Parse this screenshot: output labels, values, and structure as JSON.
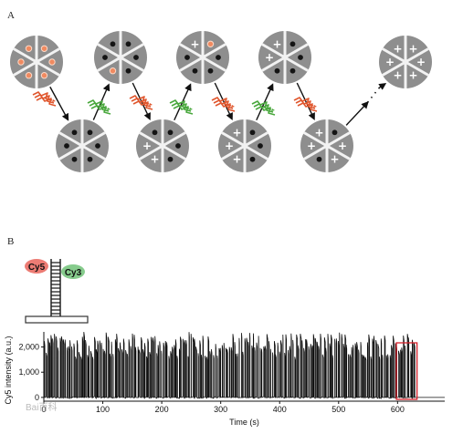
{
  "panels": {
    "a_label": "A",
    "b_label": "B"
  },
  "schematic": {
    "dye_left": "Cy5",
    "dye_right": "Cy3",
    "plus_glyph": "+",
    "colors": {
      "wheel": "#8e8e8e",
      "spoke": "#f2f2f2",
      "dot": "#141414",
      "fluor": "#f08a60",
      "cy5": "#ec7c74",
      "cy3": "#86cb8c",
      "red_flash": "#e0572e",
      "green_flash": "#4aa83e"
    },
    "top_row": [
      [
        "fluor",
        "fluor",
        "fluor",
        "fluor",
        "fluor",
        "fluor"
      ],
      [
        "dot",
        "dot",
        "fluor",
        "dot",
        "dot",
        "dot"
      ],
      [
        "dot",
        "dot",
        "dot",
        "dot",
        "plus",
        "fluor"
      ],
      [
        "dot",
        "dot",
        "dot",
        "plus",
        "plus",
        "dot"
      ],
      [
        "plus",
        "plus",
        "plus",
        "plus",
        "plus",
        "plus"
      ]
    ],
    "bottom_row": [
      [
        "dot",
        "dot",
        "dot",
        "dot",
        "dot",
        "dot"
      ],
      [
        "dot",
        "dot",
        "plus",
        "plus",
        "dot",
        "dot"
      ],
      [
        "dot",
        "dot",
        "plus",
        "plus",
        "plus",
        "dot"
      ],
      [
        "plus",
        "plus",
        "dot",
        "plus",
        "plus",
        "dot"
      ]
    ],
    "flashes": [
      "red",
      "green",
      "red",
      "green",
      "red",
      "green",
      "red"
    ]
  },
  "chart_data": {
    "type": "line",
    "xlabel": "Time (s)",
    "ylabel": "Cy5 intensity (a.u.)",
    "xlim": [
      0,
      680
    ],
    "ylim": [
      -150,
      2600
    ],
    "xticks": [
      0,
      100,
      200,
      300,
      400,
      500,
      600
    ],
    "yticks": [
      0,
      1000,
      2000
    ],
    "ytick_labels": [
      "0",
      "1,000",
      "2,000"
    ],
    "trace": {
      "baseline": 0,
      "spike_level_range": [
        1600,
        2600
      ],
      "active_until": 630,
      "spike_count": 215
    },
    "highlight": {
      "x_range": [
        598,
        633
      ],
      "color": "#d4202a"
    }
  },
  "watermark": "Bai百科"
}
